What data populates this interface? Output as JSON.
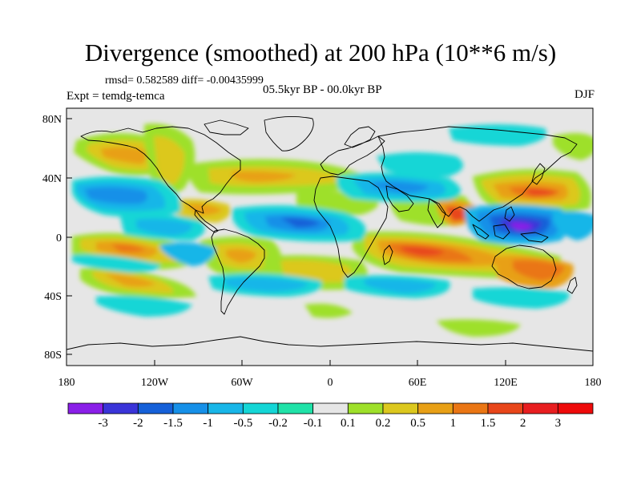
{
  "header": {
    "title": "Divergence (smoothed) at 200 hPa (10**6 m/s)",
    "stats": "rmsd= 0.582589 diff= -0.00435999",
    "experiment": "Expt = temdg-temca",
    "period": "05.5kyr BP - 00.0kyr BP",
    "season": "DJF"
  },
  "axes": {
    "y_ticks": [
      "80N",
      "40N",
      "0",
      "40S",
      "80S"
    ],
    "x_ticks": [
      "180",
      "120W",
      "60W",
      "0",
      "60E",
      "120E",
      "180"
    ]
  },
  "legend": {
    "labels": [
      "-3",
      "-2",
      "-1.5",
      "-1",
      "-0.5",
      "-0.2",
      "-0.1",
      "0.1",
      "0.2",
      "0.5",
      "1",
      "1.5",
      "2",
      "3"
    ],
    "colors": [
      "#8a1fe8",
      "#3a34d8",
      "#1560d8",
      "#1690e8",
      "#18b6e8",
      "#14d6d6",
      "#20e2a8",
      "#e6e6e6",
      "#9ee02a",
      "#dcc81e",
      "#e8a016",
      "#ea7614",
      "#e8461a",
      "#e81e20",
      "#ee0a0a"
    ]
  },
  "map": {
    "background_color": "#e6e6e6",
    "coastline_color": "#000000"
  }
}
